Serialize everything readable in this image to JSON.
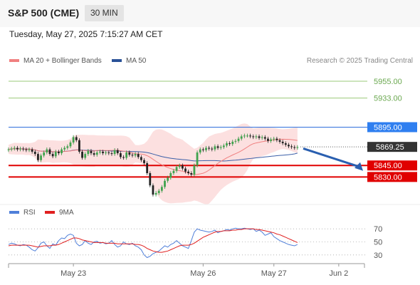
{
  "header": {
    "title": "S&P 500 (CME)",
    "timeframe": "30 MIN",
    "timestamp": "Tuesday, May 27, 2025 7:15:27 AM CET"
  },
  "legend": {
    "main": [
      {
        "label": "MA 20 + Bollinger Bands",
        "color": "#f08080"
      },
      {
        "label": "MA 50",
        "color": "#2a5298"
      }
    ],
    "rsi": [
      {
        "label": "RSI",
        "color": "#4f7fd9"
      },
      {
        "label": "9MA",
        "color": "#e02020"
      }
    ]
  },
  "credit": "Research © 2025 Trading Central",
  "chart_data": {
    "type": "line",
    "price": {
      "ylim": [
        5795,
        5968
      ],
      "current_price": {
        "value": 5869.25,
        "label": "5869.25"
      },
      "levels": [
        {
          "value": 5955,
          "label": "5955.00",
          "kind": "target"
        },
        {
          "value": 5933,
          "label": "5933.00",
          "kind": "target"
        },
        {
          "value": 5895,
          "label": "5895.00",
          "kind": "pivot"
        },
        {
          "value": 5845,
          "label": "5845.00",
          "kind": "support"
        },
        {
          "value": 5830,
          "label": "5830.00",
          "kind": "support"
        }
      ],
      "close_series": [
        5866,
        5867,
        5868,
        5866,
        5867,
        5866,
        5865,
        5866,
        5863,
        5860,
        5852,
        5858,
        5862,
        5866,
        5860,
        5857,
        5863,
        5861,
        5866,
        5868,
        5870,
        5875,
        5882,
        5878,
        5863,
        5855,
        5860,
        5864,
        5861,
        5859,
        5862,
        5863,
        5861,
        5862,
        5861,
        5860,
        5865,
        5861,
        5856,
        5855,
        5862,
        5859,
        5858,
        5860,
        5856,
        5852,
        5848,
        5835,
        5819,
        5807,
        5809,
        5812,
        5817,
        5825,
        5829,
        5835,
        5838,
        5843,
        5845,
        5841,
        5837,
        5835,
        5833,
        5845,
        5862,
        5866,
        5865,
        5868,
        5867,
        5866,
        5870,
        5868,
        5869,
        5871,
        5874,
        5873,
        5876,
        5877,
        5880,
        5883,
        5884,
        5884,
        5883,
        5882,
        5883,
        5881,
        5882,
        5880,
        5877,
        5879,
        5880,
        5878,
        5876,
        5874,
        5872,
        5870,
        5869,
        5868,
        5869
      ],
      "x_tick_labels": [
        {
          "index": 22,
          "label": "May 23"
        },
        {
          "index": 66,
          "label": "May 26"
        },
        {
          "index": 90,
          "label": "May 27"
        },
        {
          "index": 112,
          "label": "Jun 2"
        }
      ],
      "projection": {
        "from_index": 99,
        "to_value": 5838
      }
    },
    "rsi": {
      "ylim": [
        20,
        80
      ],
      "y_ticks": [
        70,
        50,
        30
      ],
      "rsi_values": [
        46,
        48,
        47,
        45,
        44,
        46,
        45,
        42,
        38,
        36,
        41,
        48,
        50,
        44,
        40,
        47,
        45,
        52,
        56,
        55,
        60,
        62,
        60,
        48,
        44,
        46,
        52,
        48,
        46,
        50,
        51,
        48,
        49,
        47,
        48,
        52,
        46,
        42,
        44,
        50,
        47,
        46,
        48,
        44,
        42,
        38,
        30,
        26,
        28,
        32,
        34,
        36,
        40,
        44,
        42,
        46,
        48,
        52,
        48,
        44,
        42,
        40,
        52,
        65,
        70,
        68,
        67,
        66,
        65,
        66,
        68,
        64,
        66,
        67,
        69,
        68,
        70,
        71,
        70,
        70,
        71,
        70,
        69,
        70,
        66,
        68,
        65,
        60,
        62,
        64,
        58,
        55,
        52,
        50,
        48,
        46,
        45,
        44,
        46
      ],
      "ma9_values": [
        44,
        45,
        45,
        45,
        45,
        45,
        45,
        45,
        44,
        43,
        42,
        43,
        44,
        44,
        44,
        45,
        45,
        46,
        48,
        50,
        52,
        54,
        56,
        56,
        55,
        53,
        52,
        51,
        50,
        49,
        49,
        49,
        49,
        48,
        48,
        48,
        48,
        47,
        47,
        47,
        47,
        47,
        47,
        46,
        46,
        45,
        43,
        40,
        38,
        36,
        35,
        34,
        34,
        35,
        36,
        38,
        40,
        42,
        44,
        45,
        45,
        45,
        46,
        48,
        51,
        54,
        57,
        59,
        61,
        63,
        65,
        66,
        66,
        67,
        67,
        67,
        68,
        68,
        69,
        69,
        70,
        70,
        70,
        70,
        69,
        69,
        68,
        67,
        66,
        65,
        64,
        62,
        61,
        59,
        57,
        55,
        53,
        51,
        49
      ]
    }
  }
}
